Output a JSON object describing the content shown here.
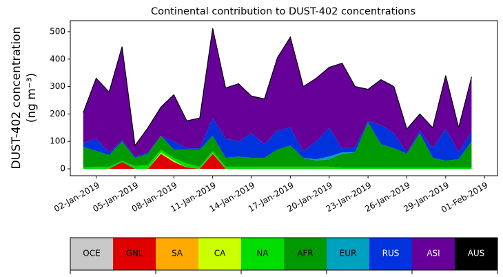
{
  "chart_data": {
    "type": "stacked-area",
    "title": "Continental contribution to DUST-402 concentrations",
    "ylabel": [
      "DUST-402 concentration",
      "(ng m⁻³)"
    ],
    "x": [
      "01-Jan-2019",
      "02-Jan-2019",
      "03-Jan-2019",
      "04-Jan-2019",
      "05-Jan-2019",
      "06-Jan-2019",
      "07-Jan-2019",
      "08-Jan-2019",
      "09-Jan-2019",
      "10-Jan-2019",
      "11-Jan-2019",
      "12-Jan-2019",
      "13-Jan-2019",
      "14-Jan-2019",
      "15-Jan-2019",
      "16-Jan-2019",
      "17-Jan-2019",
      "18-Jan-2019",
      "19-Jan-2019",
      "20-Jan-2019",
      "21-Jan-2019",
      "22-Jan-2019",
      "23-Jan-2019",
      "24-Jan-2019",
      "25-Jan-2019",
      "26-Jan-2019",
      "27-Jan-2019",
      "28-Jan-2019",
      "29-Jan-2019",
      "30-Jan-2019",
      "31-Jan-2019"
    ],
    "xlim": [
      "31-Dec-2018",
      "02-Feb-2019"
    ],
    "xticks": [
      "02-Jan-2019",
      "05-Jan-2019",
      "08-Jan-2019",
      "11-Jan-2019",
      "14-Jan-2019",
      "17-Jan-2019",
      "20-Jan-2019",
      "23-Jan-2019",
      "26-Jan-2019",
      "29-Jan-2019",
      "01-Feb-2019"
    ],
    "ylim": [
      -25,
      540
    ],
    "yticks": [
      0,
      100,
      200,
      300,
      400,
      500
    ],
    "series": [
      {
        "name": "OCE",
        "color": "#c8c8c8",
        "values": [
          0,
          0,
          0,
          0,
          0,
          0,
          0,
          0,
          0,
          0,
          0,
          0,
          0,
          0,
          0,
          0,
          0,
          0,
          0,
          0,
          0,
          0,
          0,
          0,
          0,
          0,
          0,
          0,
          0,
          0,
          0
        ]
      },
      {
        "name": "GNL",
        "color": "#e00000",
        "values": [
          0,
          0,
          0,
          25,
          0,
          0,
          55,
          25,
          5,
          0,
          55,
          0,
          0,
          0,
          0,
          0,
          0,
          0,
          0,
          0,
          0,
          0,
          0,
          0,
          0,
          0,
          0,
          0,
          0,
          0,
          0
        ]
      },
      {
        "name": "SA",
        "color": "#ffaa00",
        "values": [
          0,
          0,
          0,
          0,
          0,
          0,
          0,
          0,
          0,
          0,
          0,
          0,
          0,
          0,
          0,
          0,
          0,
          0,
          0,
          0,
          0,
          0,
          0,
          0,
          0,
          0,
          0,
          0,
          0,
          0,
          0
        ]
      },
      {
        "name": "CA",
        "color": "#ccff00",
        "values": [
          0,
          0,
          0,
          0,
          0,
          0,
          5,
          5,
          0,
          0,
          2,
          0,
          0,
          0,
          0,
          0,
          0,
          0,
          0,
          0,
          0,
          0,
          0,
          0,
          0,
          0,
          0,
          0,
          0,
          0,
          0
        ]
      },
      {
        "name": "NA",
        "color": "#00dd00",
        "values": [
          5,
          8,
          8,
          5,
          10,
          15,
          10,
          10,
          15,
          8,
          8,
          8,
          8,
          8,
          8,
          8,
          8,
          8,
          8,
          8,
          5,
          5,
          5,
          5,
          5,
          5,
          5,
          5,
          5,
          5,
          5
        ]
      },
      {
        "name": "AFR",
        "color": "#009900",
        "values": [
          75,
          57,
          42,
          70,
          30,
          40,
          50,
          30,
          50,
          62,
          55,
          32,
          37,
          32,
          32,
          62,
          77,
          32,
          22,
          27,
          50,
          55,
          165,
          85,
          70,
          50,
          125,
          35,
          25,
          30,
          95
        ]
      },
      {
        "name": "EUR",
        "color": "#00a0c0",
        "values": [
          0,
          0,
          0,
          0,
          0,
          0,
          0,
          0,
          0,
          0,
          0,
          0,
          0,
          0,
          0,
          0,
          0,
          0,
          5,
          10,
          5,
          0,
          0,
          0,
          0,
          0,
          0,
          0,
          0,
          0,
          0
        ]
      },
      {
        "name": "RUS",
        "color": "#0033dd",
        "values": [
          15,
          45,
          10,
          5,
          5,
          5,
          0,
          30,
          5,
          5,
          65,
          70,
          55,
          90,
          50,
          70,
          65,
          25,
          65,
          105,
          15,
          20,
          5,
          70,
          55,
          5,
          10,
          35,
          115,
          25,
          35
        ]
      },
      {
        "name": "ASI",
        "color": "#660099",
        "values": [
          110,
          220,
          220,
          340,
          40,
          90,
          105,
          170,
          100,
          110,
          327,
          185,
          210,
          135,
          165,
          265,
          330,
          235,
          230,
          220,
          310,
          220,
          115,
          165,
          170,
          85,
          60,
          75,
          195,
          90,
          200
        ]
      },
      {
        "name": "AUS",
        "color": "#000000",
        "values": [
          0,
          0,
          0,
          0,
          0,
          0,
          0,
          0,
          0,
          0,
          0,
          0,
          0,
          0,
          0,
          0,
          0,
          0,
          0,
          0,
          0,
          0,
          0,
          0,
          0,
          0,
          0,
          0,
          0,
          0,
          0
        ]
      }
    ]
  }
}
